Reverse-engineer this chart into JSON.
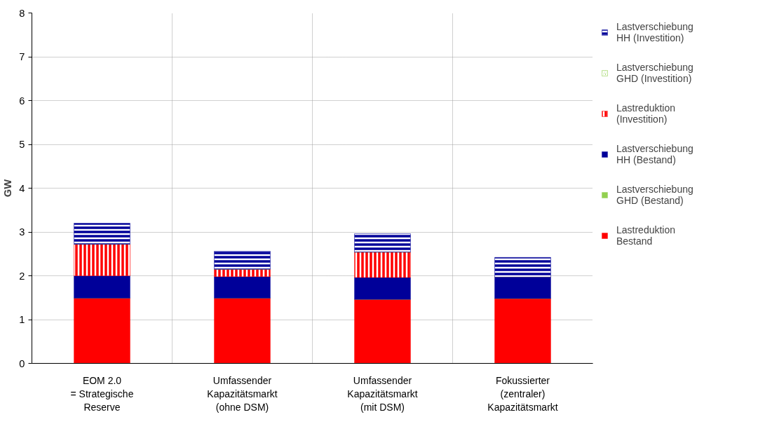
{
  "chart_data": {
    "type": "bar",
    "stacked": true,
    "ylabel": "GW",
    "categories": [
      "EOM 2.0\n= Strategische\nReserve",
      "Umfassender\nKapazitätsmarkt\n(ohne DSM)",
      "Umfassender\nKapazitätsmarkt\n(mit DSM)",
      "Fokussierter\n(zentraler)\nKapazitätsmarkt"
    ],
    "series": [
      {
        "name": "Lastreduktion Bestand",
        "color": "#ff0000",
        "values": [
          1.49,
          1.49,
          1.46,
          1.48
        ]
      },
      {
        "name": "Lastverschiebung GHD (Bestand)",
        "color": "#92d050",
        "values": [
          0,
          0,
          0,
          0
        ]
      },
      {
        "name": "Lastverschiebung HH (Bestand)",
        "color": "#000099",
        "values": [
          0.51,
          0.49,
          0.5,
          0.49
        ]
      },
      {
        "name": "Lastreduktion (Investition)",
        "color": "#ff0000",
        "values": [
          0.72,
          0.17,
          0.58,
          0
        ]
      },
      {
        "name": "Lastverschiebung GHD (Investition)",
        "color": "#92d050",
        "values": [
          0,
          0,
          0,
          0
        ]
      },
      {
        "name": "Lastverschiebung HH (Investition)",
        "color": "#000099",
        "values": [
          0.48,
          0.41,
          0.42,
          0.45
        ]
      }
    ],
    "ylim": [
      0,
      8
    ],
    "yticks": [
      0,
      1,
      2,
      3,
      4,
      5,
      6,
      7,
      8
    ],
    "grid": true,
    "legend": "right"
  }
}
